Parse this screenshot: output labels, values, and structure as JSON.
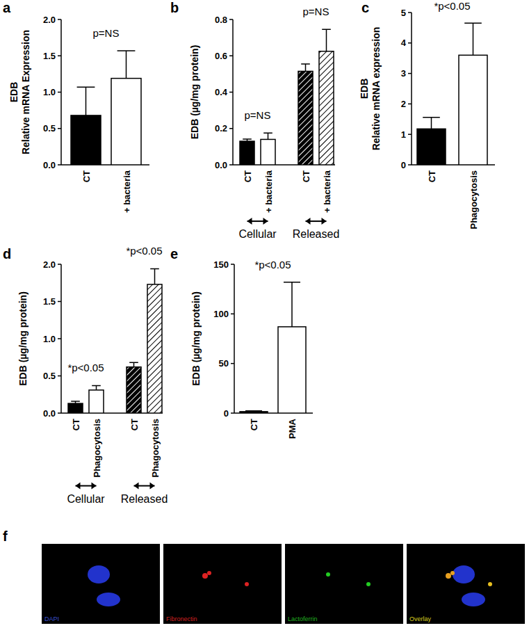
{
  "chart_data": [
    {
      "type": "bar",
      "panel": "a",
      "ylabel": [
        "EDB",
        "Relative mRNA Expression"
      ],
      "categories": [
        "CT",
        "+ bacteria"
      ],
      "values": [
        0.68,
        1.19
      ],
      "errors": [
        0.39,
        0.38
      ],
      "colors": [
        "#000000",
        "#ffffff"
      ],
      "ylim": [
        0,
        2.0
      ],
      "yticks": [
        {
          "value": 0,
          "label": "0.0"
        },
        {
          "value": 0.5,
          "label": "0.5"
        },
        {
          "value": 1.0,
          "label": "1.0"
        },
        {
          "value": 1.5,
          "label": "1.5"
        },
        {
          "value": 2.0,
          "label": "2.0"
        }
      ],
      "annotations": [
        "p=NS"
      ]
    },
    {
      "type": "bar",
      "panel": "b",
      "ylabel": [
        "EDB (µg/mg protein)"
      ],
      "categories": [
        "CT",
        "+ bacteria",
        "CT",
        "+ bacteria"
      ],
      "values": [
        0.13,
        0.14,
        0.515,
        0.625
      ],
      "errors": [
        0.012,
        0.035,
        0.04,
        0.12
      ],
      "colors": [
        "#000000",
        "#ffffff",
        "#000000",
        "#ffffff"
      ],
      "groups": [
        "Cellular",
        "Released"
      ],
      "ylim": [
        0,
        0.8
      ],
      "yticks": [
        {
          "value": 0,
          "label": "0.0"
        },
        {
          "value": 0.2,
          "label": "0.2"
        },
        {
          "value": 0.4,
          "label": "0.4"
        },
        {
          "value": 0.6,
          "label": "0.6"
        },
        {
          "value": 0.8,
          "label": "0.8"
        }
      ],
      "annotations": [
        "p=NS",
        "p=NS"
      ]
    },
    {
      "type": "bar",
      "panel": "c",
      "ylabel": [
        "EDB",
        "Relative mRNA expression"
      ],
      "categories": [
        "CT",
        "Phagocytosis"
      ],
      "values": [
        1.18,
        3.6
      ],
      "errors": [
        0.38,
        1.05
      ],
      "colors": [
        "#000000",
        "#ffffff"
      ],
      "ylim": [
        0,
        5
      ],
      "yticks": [
        0,
        1,
        2,
        3,
        4,
        5
      ],
      "annotations": [
        "*p<0.05"
      ]
    },
    {
      "type": "bar",
      "panel": "d",
      "ylabel": [
        "EDB (µg/mg protein)"
      ],
      "categories": [
        "CT",
        "Phagocytosis",
        "CT",
        "Phagocytosis"
      ],
      "values": [
        0.13,
        0.31,
        0.62,
        1.73
      ],
      "errors": [
        0.03,
        0.06,
        0.06,
        0.21
      ],
      "colors": [
        "#000000",
        "#ffffff",
        "#000000",
        "#ffffff"
      ],
      "groups": [
        "Cellular",
        "Released"
      ],
      "ylim": [
        0,
        2.0
      ],
      "yticks": [
        {
          "value": 0,
          "label": "0.0"
        },
        {
          "value": 0.5,
          "label": "0.5"
        },
        {
          "value": 1.0,
          "label": "1.0"
        },
        {
          "value": 1.5,
          "label": "1.5"
        },
        {
          "value": 2.0,
          "label": "2.0"
        }
      ],
      "annotations": [
        "*p<0.05",
        "*p<0.05"
      ]
    },
    {
      "type": "bar",
      "panel": "e",
      "ylabel": [
        "EDB (µg/mg protein)"
      ],
      "categories": [
        "CT",
        "PMA"
      ],
      "values": [
        1.5,
        87
      ],
      "errors": [
        0.8,
        45
      ],
      "colors": [
        "#000000",
        "#ffffff"
      ],
      "ylim": [
        0,
        150
      ],
      "yticks": [
        0,
        50,
        100,
        150
      ],
      "annotations": [
        "*p<0.05"
      ]
    }
  ],
  "images": {
    "panel": "f",
    "labels": [
      "DAPI",
      "Fibronectin",
      "Lactoferrin",
      "Overlay"
    ]
  }
}
